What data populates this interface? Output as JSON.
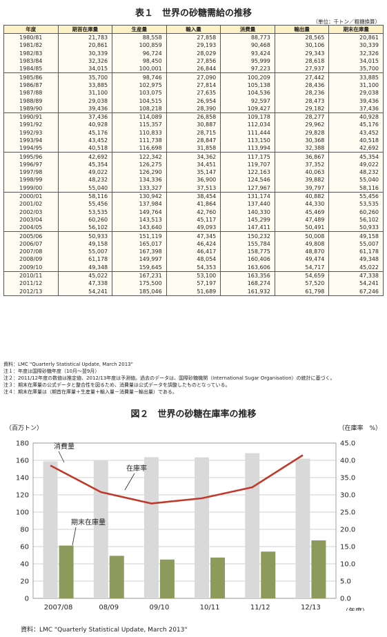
{
  "table": {
    "title": "表１　世界の砂糖需給の推移",
    "unit": "（単位：千トン／粗糖換算）",
    "headers": [
      "年度",
      "期首在庫量",
      "生産量",
      "輸入量",
      "消費量",
      "輸出量",
      "期末在庫量"
    ],
    "rows": [
      [
        "1980/81",
        "21,783",
        "88,558",
        "27,858",
        "88,773",
        "28,565",
        "20,861"
      ],
      [
        "1981/82",
        "20,861",
        "100,859",
        "29,193",
        "90,468",
        "30,106",
        "30,339"
      ],
      [
        "1982/83",
        "30,339",
        "96,724",
        "28,029",
        "93,424",
        "29,343",
        "32,326"
      ],
      [
        "1983/84",
        "32,326",
        "98,450",
        "27,856",
        "95,999",
        "28,618",
        "34,015"
      ],
      [
        "1984/85",
        "34,015",
        "100,001",
        "26,844",
        "97,223",
        "27,937",
        "35,700"
      ],
      [
        "1985/86",
        "35,700",
        "98,746",
        "27,090",
        "100,209",
        "27,442",
        "33,885"
      ],
      [
        "1986/87",
        "33,885",
        "102,975",
        "27,814",
        "105,138",
        "28,436",
        "31,100"
      ],
      [
        "1987/88",
        "31,100",
        "103,075",
        "27,635",
        "104,536",
        "28,236",
        "29,038"
      ],
      [
        "1988/89",
        "29,038",
        "104,515",
        "26,954",
        "92,597",
        "28,473",
        "39,436"
      ],
      [
        "1989/90",
        "39,436",
        "108,218",
        "28,390",
        "109,427",
        "29,182",
        "37,436"
      ],
      [
        "1990/91",
        "37,436",
        "114,089",
        "26,858",
        "109,178",
        "28,277",
        "40,928"
      ],
      [
        "1991/92",
        "40,928",
        "115,357",
        "30,887",
        "112,034",
        "29,962",
        "45,176"
      ],
      [
        "1992/93",
        "45,176",
        "110,833",
        "28,715",
        "111,444",
        "29,828",
        "43,452"
      ],
      [
        "1993/94",
        "43,452",
        "111,738",
        "28,847",
        "113,150",
        "30,368",
        "40,518"
      ],
      [
        "1994/95",
        "40,518",
        "116,698",
        "31,858",
        "113,994",
        "32,388",
        "42,692"
      ],
      [
        "1995/96",
        "42,692",
        "122,342",
        "34,362",
        "117,175",
        "36,867",
        "45,354"
      ],
      [
        "1996/97",
        "45,354",
        "126,275",
        "34,451",
        "119,707",
        "37,352",
        "49,022"
      ],
      [
        "1997/98",
        "49,022",
        "126,290",
        "35,147",
        "122,163",
        "40,063",
        "48,232"
      ],
      [
        "1998/99",
        "48,232",
        "134,336",
        "36,900",
        "124,546",
        "39,882",
        "55,040"
      ],
      [
        "1999/00",
        "55,040",
        "133,327",
        "37,513",
        "127,967",
        "39,797",
        "58,116"
      ],
      [
        "2000/01",
        "58,116",
        "130,942",
        "38,454",
        "131,174",
        "40,882",
        "55,456"
      ],
      [
        "2001/02",
        "55,456",
        "137,984",
        "41,864",
        "137,440",
        "44,330",
        "53,535"
      ],
      [
        "2002/03",
        "53,535",
        "149,764",
        "42,760",
        "140,330",
        "45,469",
        "60,260"
      ],
      [
        "2003/04",
        "60,260",
        "143,513",
        "45,117",
        "145,299",
        "47,489",
        "56,102"
      ],
      [
        "2004/05",
        "56,102",
        "143,640",
        "49,093",
        "147,411",
        "50,491",
        "50,933"
      ],
      [
        "2005/06",
        "50,933",
        "151,119",
        "47,345",
        "150,232",
        "50,008",
        "49,158"
      ],
      [
        "2006/07",
        "49,158",
        "165,017",
        "46,424",
        "155,784",
        "49,808",
        "55,007"
      ],
      [
        "2007/08",
        "55,007",
        "167,398",
        "46,417",
        "158,775",
        "48,870",
        "61,178"
      ],
      [
        "2008/09",
        "61,178",
        "149,997",
        "48,054",
        "160,406",
        "49,474",
        "49,348"
      ],
      [
        "2009/10",
        "49,348",
        "159,645",
        "54,353",
        "163,606",
        "54,717",
        "45,022"
      ],
      [
        "2010/11",
        "45,022",
        "167,231",
        "53,100",
        "163,356",
        "54,659",
        "47,338"
      ],
      [
        "2011/12",
        "47,338",
        "175,500",
        "57,197",
        "168,274",
        "57,520",
        "54,241"
      ],
      [
        "2012/13",
        "54,241",
        "185,046",
        "51,689",
        "161,932",
        "61,798",
        "67,246"
      ]
    ]
  },
  "notes": [
    "資料：LMC \"Quarterly Statistical Update, March 2013\"",
    "注１：年度は国際砂糖年度（10月～翌9月）",
    "注２：2011/12年度の数値は推定値、2012/13年度は予測値。過去のデータは、国際砂糖機関（International Sugar Organisation）の統計に基づく。",
    "注３：期末在庫量の公式データと整合性を図るため、消費量は公式データを調整したものとなっている。",
    "注４：期末在庫量は（期首在庫量＋生産量＋輸入量－消費量－輸出量）である。"
  ],
  "chart": {
    "title": "図２　世界の砂糖在庫率の推移",
    "left_unit": "（百万トン）",
    "right_unit": "（在庫率　%）",
    "x_unit": "（年度）",
    "source": "資料：LMC \"Quarterly Statistical Update, March 2013\"",
    "label_consumption": "消費量",
    "label_stock": "期末在庫量",
    "label_ratio": "在庫率"
  },
  "chart_data": {
    "type": "bar",
    "categories": [
      "2007/08",
      "08/09",
      "09/10",
      "10/11",
      "11/12",
      "12/13"
    ],
    "series": [
      {
        "name": "消費量",
        "type": "bar",
        "axis": "left",
        "values": [
          158.8,
          160.4,
          163.6,
          163.4,
          168.3,
          161.9
        ],
        "color": "#d9d9d9"
      },
      {
        "name": "期末在庫量",
        "type": "bar",
        "axis": "left",
        "values": [
          61.2,
          49.3,
          45.0,
          47.3,
          54.2,
          67.2
        ],
        "color": "#8c9a5b"
      },
      {
        "name": "在庫率",
        "type": "line",
        "axis": "right",
        "values": [
          38.5,
          30.8,
          27.5,
          29.0,
          32.2,
          41.5
        ],
        "color": "#c0392b"
      }
    ],
    "ylim_left": [
      0,
      180
    ],
    "yticks_left": [
      "0",
      "20",
      "40",
      "60",
      "80",
      "100",
      "120",
      "140",
      "160",
      "180"
    ],
    "ylim_right": [
      0,
      45
    ],
    "yticks_right": [
      "0.0",
      "5.0",
      "10.0",
      "15.0",
      "20.0",
      "25.0",
      "30.0",
      "35.0",
      "40.0",
      "45.0"
    ],
    "grid": true
  }
}
